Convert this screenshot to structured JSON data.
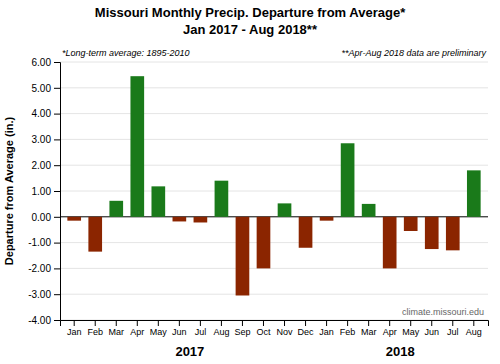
{
  "chart_data": {
    "type": "bar",
    "title": "Missouri Monthly Precip. Departure from Average*",
    "subtitle": "Jan 2017 - Aug 2018**",
    "y_label": "Departure from Average (in.)",
    "annotations": [
      "*Long-term average: 1895-2010",
      "**Apr-Aug 2018 data are preliminary",
      "climate.missouri.edu",
      "2017",
      "2018"
    ],
    "categories": [
      "Jan",
      "Feb",
      "Mar",
      "Apr",
      "May",
      "Jun",
      "Jul",
      "Aug",
      "Sep",
      "Oct",
      "Nov",
      "Dec",
      "Jan",
      "Feb",
      "Mar",
      "Apr",
      "May",
      "Jun",
      "Jul",
      "Aug"
    ],
    "values": [
      -0.15,
      -1.35,
      0.62,
      5.45,
      1.18,
      -0.18,
      -0.22,
      1.4,
      -3.05,
      -2.0,
      0.52,
      -1.2,
      -0.15,
      2.85,
      0.5,
      -2.0,
      -0.55,
      -1.25,
      -1.3,
      1.8
    ],
    "colors": [
      "#8B2500",
      "#8B2500",
      "#1a7a1a",
      "#1a7a1a",
      "#1a7a1a",
      "#8B2500",
      "#8B2500",
      "#1a7a1a",
      "#8B2500",
      "#8B2500",
      "#1a7a1a",
      "#8B2500",
      "#8B2500",
      "#1a7a1a",
      "#1a7a1a",
      "#8B2500",
      "#8B2500",
      "#8B2500",
      "#8B2500",
      "#1a7a1a"
    ],
    "ylim": [
      -4.0,
      6.0
    ],
    "yticks": [
      {
        "value": -4.0,
        "label": "-4.00"
      },
      {
        "value": -3.0,
        "label": "-3.00"
      },
      {
        "value": -2.0,
        "label": "-2.00"
      },
      {
        "value": -1.0,
        "label": "-1.00"
      },
      {
        "value": 0.0,
        "label": "0.00"
      },
      {
        "value": 1.0,
        "label": "1.00"
      },
      {
        "value": 2.0,
        "label": "2.00"
      },
      {
        "value": 3.0,
        "label": "3.00"
      },
      {
        "value": 4.0,
        "label": "4.00"
      },
      {
        "value": 5.0,
        "label": "5.00"
      },
      {
        "value": 6.0,
        "label": "6.00"
      }
    ],
    "grid": true
  }
}
